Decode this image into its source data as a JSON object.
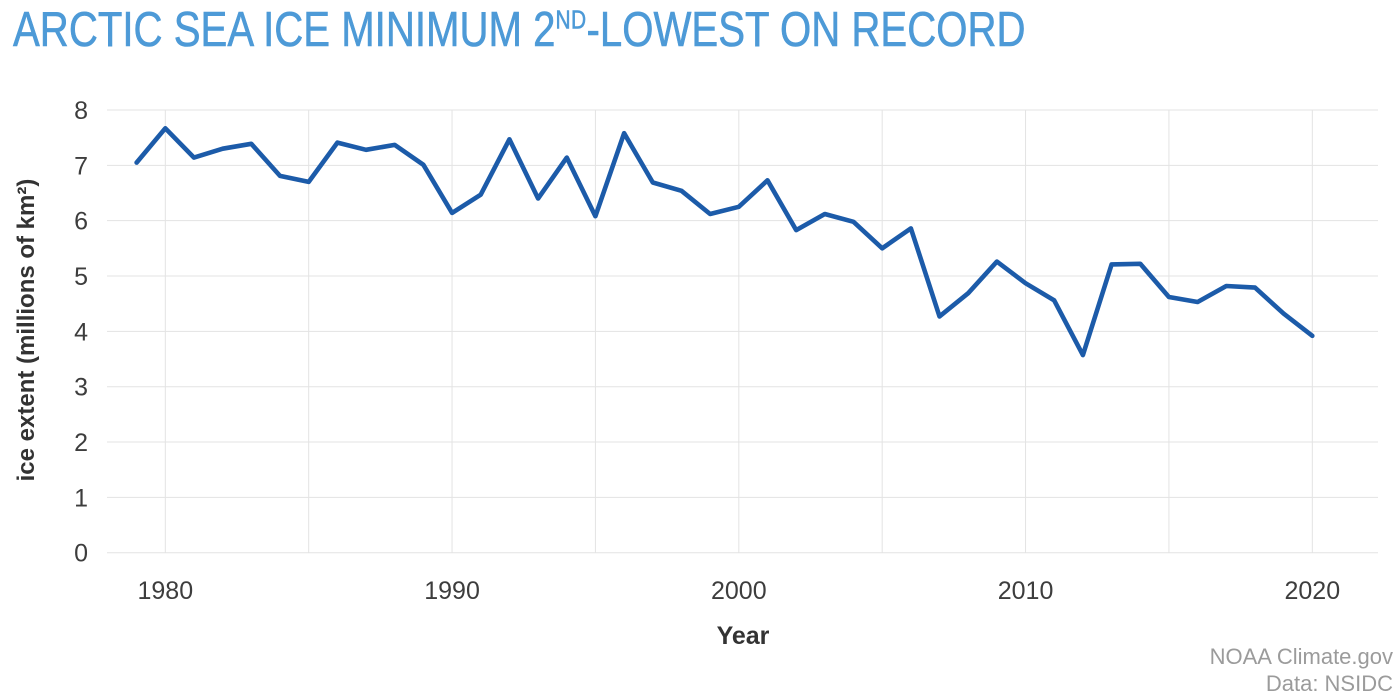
{
  "title": {
    "part1": "ARCTIC SEA ICE MINIMUM 2",
    "superscript": "ND",
    "part2": "-LOWEST ON RECORD",
    "full": "ARCTIC SEA ICE MINIMUM 2ND-LOWEST ON RECORD"
  },
  "credit": {
    "line1": "NOAA Climate.gov",
    "line2": "Data: NSIDC"
  },
  "colors": {
    "title": "#4d9ad7",
    "line": "#1c5ba9",
    "gridline": "#e3e3e3",
    "axis_text": "#3d3d3d",
    "axis_title": "#333333",
    "credit": "#9b9b9b"
  },
  "chart_data": {
    "type": "line",
    "title": "ARCTIC SEA ICE MINIMUM 2ND-LOWEST ON RECORD",
    "xlabel": "Year",
    "ylabel": "ice extent (millions of km²)",
    "x": [
      1979,
      1980,
      1981,
      1982,
      1983,
      1984,
      1985,
      1986,
      1987,
      1988,
      1989,
      1990,
      1991,
      1992,
      1993,
      1994,
      1995,
      1996,
      1997,
      1998,
      1999,
      2000,
      2001,
      2002,
      2003,
      2004,
      2005,
      2006,
      2007,
      2008,
      2009,
      2010,
      2011,
      2012,
      2013,
      2014,
      2015,
      2016,
      2017,
      2018,
      2019,
      2020
    ],
    "values": [
      7.05,
      7.67,
      7.14,
      7.3,
      7.39,
      6.81,
      6.7,
      7.41,
      7.28,
      7.37,
      7.01,
      6.14,
      6.47,
      7.47,
      6.4,
      7.14,
      6.08,
      7.58,
      6.69,
      6.54,
      6.12,
      6.25,
      6.73,
      5.83,
      6.12,
      5.98,
      5.5,
      5.86,
      4.27,
      4.69,
      5.26,
      4.87,
      4.56,
      3.57,
      5.21,
      5.22,
      4.62,
      4.53,
      4.82,
      4.79,
      4.32,
      3.92
    ],
    "ylim": [
      0,
      8
    ],
    "yticks": [
      0,
      1,
      2,
      3,
      4,
      5,
      6,
      7,
      8
    ],
    "xticks": [
      1980,
      1990,
      2000,
      2010,
      2020
    ],
    "x_gridlines": [
      1980,
      1985,
      1990,
      1995,
      2000,
      2005,
      2010,
      2015,
      2020
    ],
    "grid": true,
    "legend": "none"
  }
}
